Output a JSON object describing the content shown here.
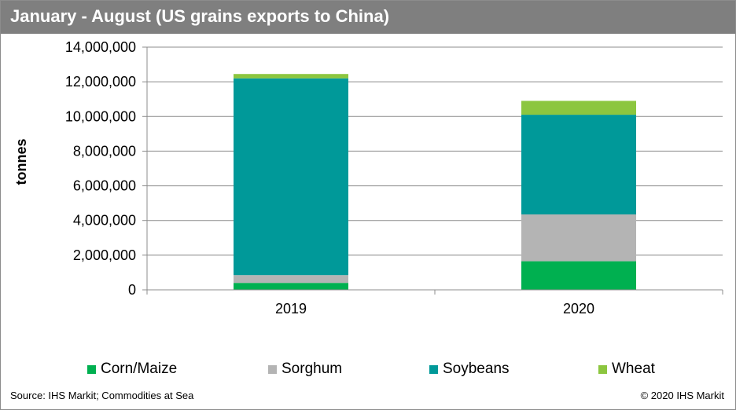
{
  "title": "January - August (US grains exports to China)",
  "source": "Source: IHS Markit; Commodities at Sea",
  "copyright": "© 2020 IHS Markit",
  "chart_data": {
    "type": "bar",
    "stacked": true,
    "title": "January - August (US grains exports to China)",
    "xlabel": "",
    "ylabel": "tonnes",
    "ylim": [
      0,
      14000000
    ],
    "yticks": [
      0,
      2000000,
      4000000,
      6000000,
      8000000,
      10000000,
      12000000,
      14000000
    ],
    "ytick_labels": [
      "0",
      "2,000,000",
      "4,000,000",
      "6,000,000",
      "8,000,000",
      "10,000,000",
      "12,000,000",
      "14,000,000"
    ],
    "categories": [
      "2019",
      "2020"
    ],
    "grid": "horizontal",
    "legend_position": "bottom",
    "series": [
      {
        "name": "Corn/Maize",
        "color": "#00b050",
        "values": [
          400000,
          1650000
        ]
      },
      {
        "name": "Sorghum",
        "color": "#b4b4b4",
        "values": [
          450000,
          2700000
        ]
      },
      {
        "name": "Soybeans",
        "color": "#009999",
        "values": [
          11350000,
          5750000
        ]
      },
      {
        "name": "Wheat",
        "color": "#8cc63f",
        "values": [
          250000,
          800000
        ]
      }
    ]
  }
}
